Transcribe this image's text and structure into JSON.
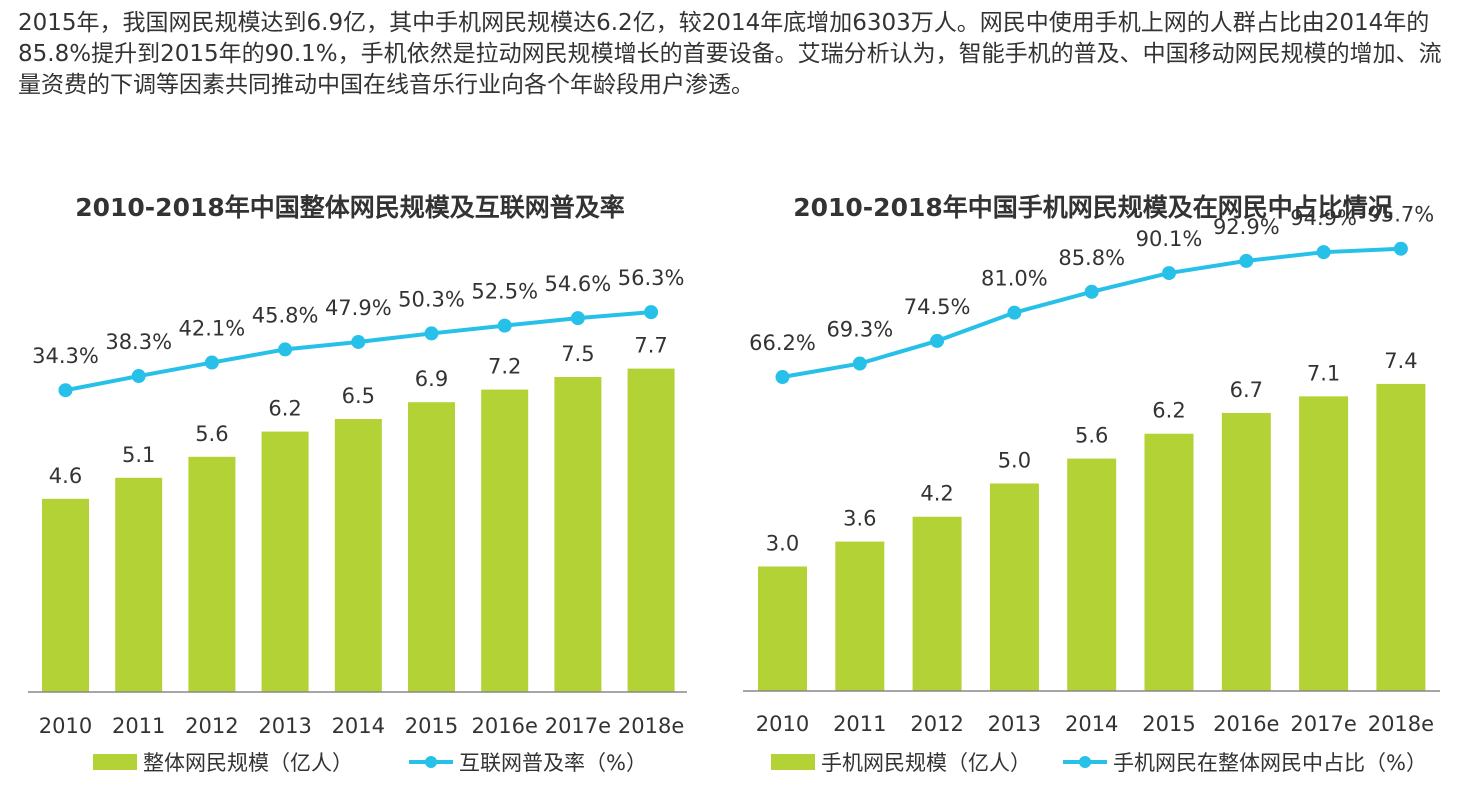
{
  "intro_text": "2015年，我国网民规模达到6.9亿，其中手机网民规模达6.2亿，较2014年底增加6303万人。网民中使用手机上网的人群占比由2014年的85.8%提升到2015年的90.1%，手机依然是拉动网民规模增长的首要设备。艾瑞分析认为，智能手机的普及、中国移动网民规模的增加、流量资费的下调等因素共同推动中国在线音乐行业向各个年龄段用户渗透。",
  "colors": {
    "bar": "#b2d235",
    "line": "#27c0e8",
    "axis": "#888888",
    "text": "#333333"
  },
  "chart_data": [
    {
      "type": "bar+line",
      "title": "2010-2018年中国整体网民规模及互联网普及率",
      "categories": [
        "2010",
        "2011",
        "2012",
        "2013",
        "2014",
        "2015",
        "2016e",
        "2017e",
        "2018e"
      ],
      "series": [
        {
          "name": "整体网民规模（亿人）",
          "type": "bar",
          "values": [
            4.6,
            5.1,
            5.6,
            6.2,
            6.5,
            6.9,
            7.2,
            7.5,
            7.7
          ],
          "labels": [
            "4.6",
            "5.1",
            "5.6",
            "6.2",
            "6.5",
            "6.9",
            "7.2",
            "7.5",
            "7.7"
          ]
        },
        {
          "name": "互联网普及率（%）",
          "type": "line",
          "values": [
            34.3,
            38.3,
            42.1,
            45.8,
            47.9,
            50.3,
            52.5,
            54.6,
            56.3
          ],
          "labels": [
            "34.3%",
            "38.3%",
            "42.1%",
            "45.8%",
            "47.9%",
            "50.3%",
            "52.5%",
            "54.6%",
            "56.3%"
          ]
        }
      ],
      "ylim": [
        0,
        9
      ],
      "y2lim": [
        0,
        100
      ],
      "legend": "bottom"
    },
    {
      "type": "bar+line",
      "title": "2010-2018年中国手机网民规模及在网民中占比情况",
      "categories": [
        "2010",
        "2011",
        "2012",
        "2013",
        "2014",
        "2015",
        "2016e",
        "2017e",
        "2018e"
      ],
      "series": [
        {
          "name": "手机网民规模（亿人）",
          "type": "bar",
          "values": [
            3.0,
            3.6,
            4.2,
            5.0,
            5.6,
            6.2,
            6.7,
            7.1,
            7.4
          ],
          "labels": [
            "3.0",
            "3.6",
            "4.2",
            "5.0",
            "5.6",
            "6.2",
            "6.7",
            "7.1",
            "7.4"
          ]
        },
        {
          "name": "手机网民在整体网民中占比（%）",
          "type": "line",
          "values": [
            66.2,
            69.3,
            74.5,
            81.0,
            85.8,
            90.1,
            92.9,
            94.9,
            95.7
          ],
          "labels": [
            "66.2%",
            "69.3%",
            "74.5%",
            "81.0%",
            "85.8%",
            "90.1%",
            "92.9%",
            "94.9%",
            "95.7%"
          ]
        }
      ],
      "ylim": [
        0,
        9
      ],
      "y2lim": [
        0,
        160
      ],
      "legend": "bottom"
    }
  ]
}
